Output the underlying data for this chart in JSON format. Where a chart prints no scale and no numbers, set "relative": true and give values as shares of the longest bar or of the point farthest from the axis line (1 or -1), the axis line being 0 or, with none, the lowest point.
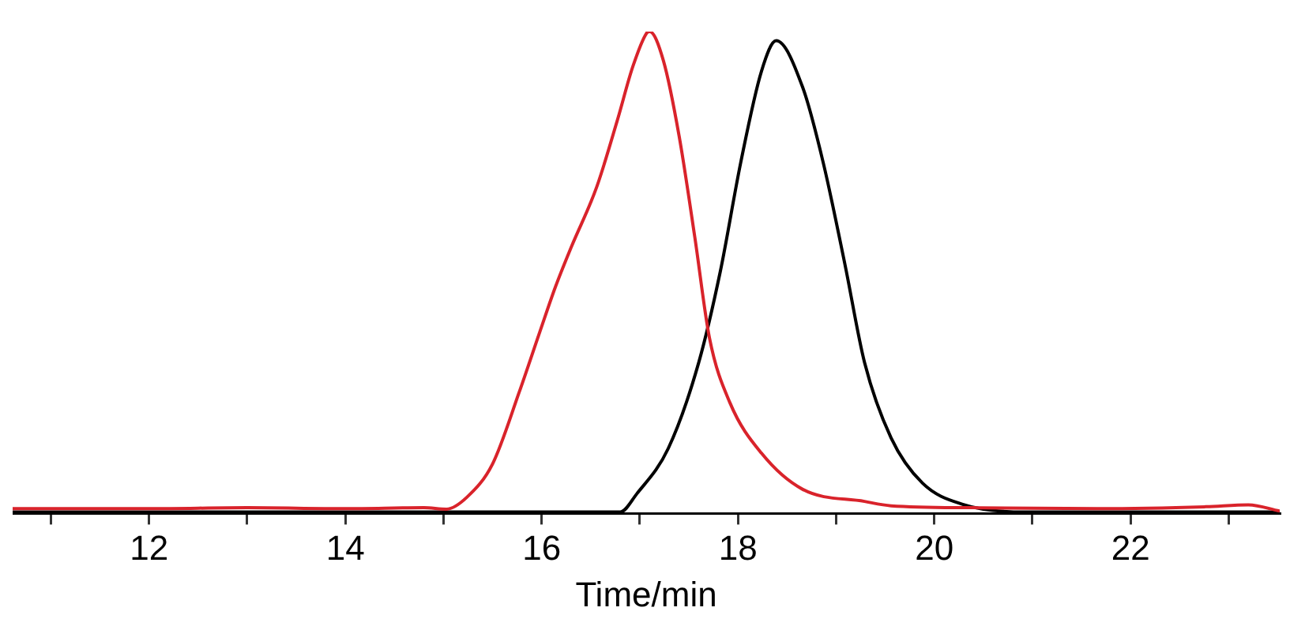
{
  "chart_data": {
    "type": "line",
    "relative": true,
    "xlabel": "Time/min",
    "xlim": [
      10.61,
      23.52
    ],
    "xticks": [
      {
        "value": 11,
        "label": null
      },
      12,
      {
        "value": 13,
        "label": null
      },
      14,
      {
        "value": 15,
        "label": null
      },
      16,
      {
        "value": 17,
        "label": null
      },
      18,
      {
        "value": 19,
        "label": null
      },
      20,
      {
        "value": 21,
        "label": null
      },
      22,
      {
        "value": 23,
        "label": null
      }
    ],
    "grid": false,
    "legend": false,
    "marker": "none",
    "line_style": "solid",
    "series": [
      {
        "color": "#d9232b",
        "x": [
          10.61,
          12,
          13,
          14,
          14.8,
          15.03,
          15.24,
          15.5,
          15.77,
          15.98,
          16.14,
          16.3,
          16.56,
          16.77,
          16.93,
          17.07,
          17.1,
          17.24,
          17.4,
          17.56,
          17.71,
          17.92,
          18.24,
          18.66,
          19.29,
          19.56,
          20.4,
          21.66,
          22.77,
          23.2,
          23.52
        ],
        "values": [
          0.01,
          0.01,
          0.012,
          0.01,
          0.012,
          0.009,
          0.034,
          0.103,
          0.251,
          0.376,
          0.47,
          0.552,
          0.677,
          0.815,
          0.928,
          0.997,
          1,
          0.94,
          0.784,
          0.574,
          0.364,
          0.229,
          0.125,
          0.05,
          0.025,
          0.016,
          0.012,
          0.01,
          0.014,
          0.018,
          0.005
        ]
      },
      {
        "color": "#000000",
        "x": [
          10.61,
          14,
          16,
          16.8,
          16.97,
          17.29,
          17.6,
          17.82,
          18.03,
          18.24,
          18.39,
          18.66,
          18.87,
          19.09,
          19.29,
          19.56,
          19.88,
          20.29,
          20.92,
          23.52
        ],
        "values": [
          0.003,
          0.003,
          0.003,
          0.003,
          0.041,
          0.135,
          0.313,
          0.502,
          0.73,
          0.918,
          0.981,
          0.884,
          0.727,
          0.517,
          0.313,
          0.157,
          0.063,
          0.019,
          0.003,
          0.003
        ]
      }
    ]
  }
}
